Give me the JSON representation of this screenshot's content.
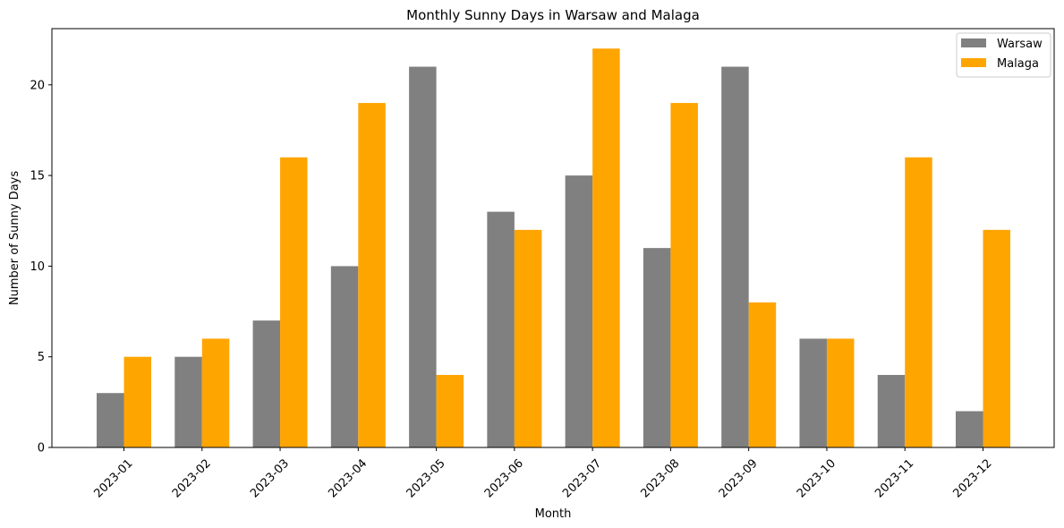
{
  "chart_data": {
    "type": "bar",
    "title": "Monthly Sunny Days in Warsaw and Malaga",
    "xlabel": "Month",
    "ylabel": "Number of Sunny Days",
    "categories": [
      "2023-01",
      "2023-02",
      "2023-03",
      "2023-04",
      "2023-05",
      "2023-06",
      "2023-07",
      "2023-08",
      "2023-09",
      "2023-10",
      "2023-11",
      "2023-12"
    ],
    "series": [
      {
        "name": "Warsaw",
        "color": "#808080",
        "values": [
          3,
          5,
          7,
          10,
          21,
          13,
          15,
          11,
          21,
          6,
          4,
          2
        ]
      },
      {
        "name": "Malaga",
        "color": "#ffa500",
        "values": [
          5,
          6,
          16,
          19,
          4,
          12,
          22,
          19,
          8,
          6,
          16,
          12
        ]
      }
    ],
    "ylim": [
      0,
      23.1
    ],
    "yticks": [
      0,
      5,
      10,
      15,
      20
    ],
    "legend_position": "top-right",
    "grid": false
  }
}
